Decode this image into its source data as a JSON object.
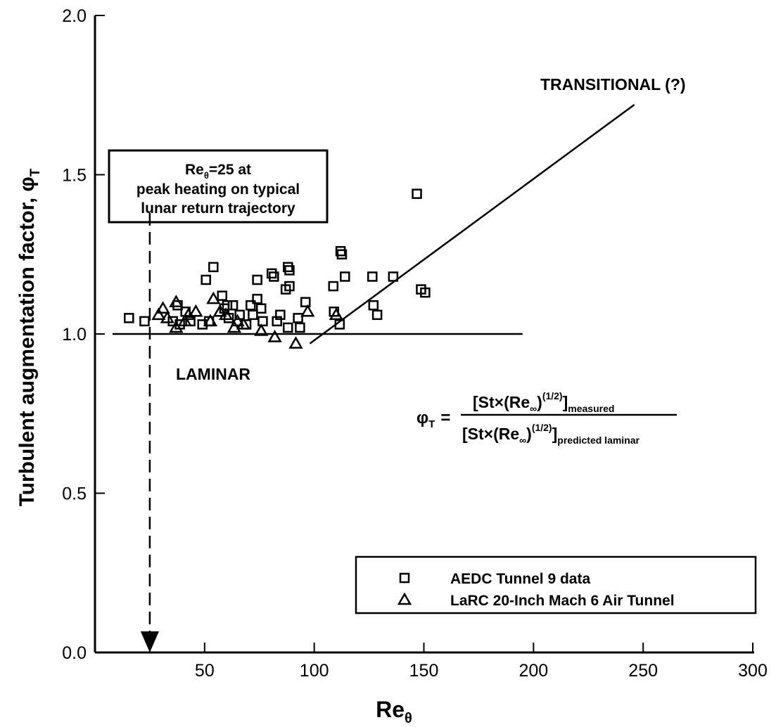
{
  "chart_data": {
    "type": "scatter",
    "xlabel": "Re",
    "xlabel_sub": "θ",
    "ylabel": "Turbulent augmentation factor, φ",
    "ylabel_sub": "T",
    "xlim": [
      0,
      300
    ],
    "ylim": [
      0,
      2
    ],
    "xticks": [
      50,
      100,
      150,
      200,
      250,
      300
    ],
    "yticks": [
      {
        "value": 0,
        "label": "0.0"
      },
      0.5,
      {
        "value": 1,
        "label": "1.0"
      },
      1.5,
      {
        "value": 2,
        "label": "2.0"
      }
    ],
    "series": [
      {
        "name": "AEDC Tunnel 9 data",
        "marker": "square",
        "color": "#000000",
        "x": [
          15.5,
          22.6,
          35.5,
          37.7,
          38.7,
          41.3,
          43.5,
          49,
          50.6,
          54,
          52,
          58,
          59,
          60.3,
          62.9,
          61,
          66,
          69,
          71,
          72,
          74,
          74,
          75.8,
          76.5,
          80.6,
          81.6,
          83,
          84.5,
          87,
          88,
          88.7,
          88.7,
          88,
          92.6,
          93.5,
          96,
          108.7,
          109,
          111.6,
          112,
          112.6,
          114,
          126.5,
          127,
          128.7,
          136,
          146.8,
          148.7,
          150.6
        ],
        "values": [
          1.05,
          1.04,
          1.04,
          1.09,
          1.03,
          1.07,
          1.04,
          1.03,
          1.17,
          1.21,
          1.04,
          1.12,
          1.08,
          1.09,
          1.09,
          1.05,
          1.06,
          1.03,
          1.09,
          1.06,
          1.17,
          1.11,
          1.08,
          1.04,
          1.19,
          1.18,
          1.04,
          1.06,
          1.14,
          1.21,
          1.2,
          1.15,
          1.02,
          1.05,
          1.02,
          1.1,
          1.15,
          1.07,
          1.03,
          1.26,
          1.25,
          1.18,
          1.18,
          1.09,
          1.06,
          1.18,
          1.44,
          1.14,
          1.13
        ]
      },
      {
        "name": "LaRC 20-Inch Mach 6 Air Tunnel",
        "marker": "triangle",
        "color": "#000000",
        "x": [
          29,
          31,
          33,
          37,
          37,
          41,
          42.6,
          46,
          54,
          52.6,
          57,
          59.7,
          63.5,
          65,
          67.7,
          75.8,
          82,
          91.6,
          97,
          110
        ],
        "values": [
          1.06,
          1.08,
          1.05,
          1.1,
          1.02,
          1.04,
          1.06,
          1.07,
          1.11,
          1.04,
          1.07,
          1.06,
          1.02,
          1.04,
          1.03,
          1.01,
          0.99,
          0.97,
          1.07,
          1.06
        ]
      }
    ],
    "reference_lines": [
      {
        "label": "LAMINAR",
        "x": [
          8,
          195
        ],
        "y": [
          1,
          1
        ]
      },
      {
        "label": "TRANSITIONAL (?)",
        "x": [
          98,
          246
        ],
        "y": [
          0.97,
          1.72
        ]
      }
    ],
    "marker_line": {
      "x": 25,
      "y": [
        1.38,
        0
      ]
    },
    "annotation": {
      "line1_a": "Re",
      "line1_sub": "θ",
      "line1_b": "=25 at",
      "line2": "peak heating on typical",
      "line3": "lunar return trajectory"
    },
    "formula": {
      "lhs": "φ",
      "lhs_sub": "T",
      "eq": "=",
      "num": [
        "[St×(Re",
        "∞",
        ")",
        "(1/2)",
        "]",
        "measured"
      ],
      "den": [
        "[St×(Re",
        "∞",
        ")",
        "(1/2)",
        "]",
        "predicted laminar"
      ]
    },
    "legend_position": "lower right"
  }
}
